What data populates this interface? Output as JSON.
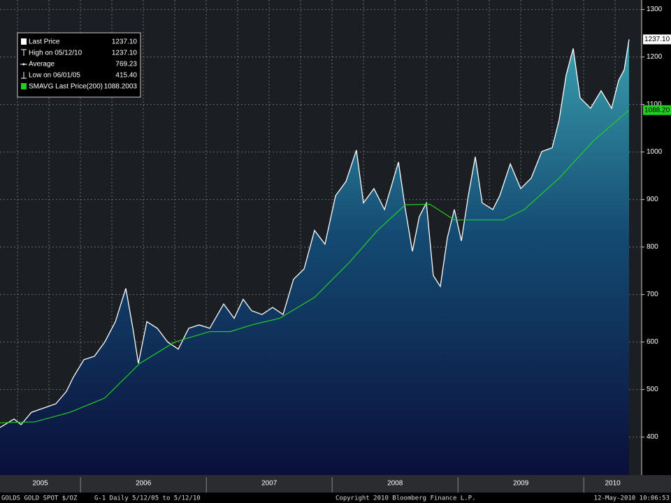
{
  "chart_data": {
    "type": "area-line",
    "xlim": [
      2005.36,
      2010.46
    ],
    "ylim": [
      320,
      1320
    ],
    "yticks": [
      400,
      500,
      600,
      700,
      800,
      900,
      1000,
      1100,
      1200,
      1300
    ],
    "xticks": [
      {
        "value": 2005.36,
        "label": "2005"
      },
      {
        "value": 2006,
        "label": "2006"
      },
      {
        "value": 2007,
        "label": "2007"
      },
      {
        "value": 2008,
        "label": "2008"
      },
      {
        "value": 2009,
        "label": "2009"
      },
      {
        "value": 2010,
        "label": "2010"
      }
    ],
    "grid": true,
    "series": [
      {
        "name": "Last Price",
        "color": "#ffffff",
        "x": [
          2005.36,
          2005.471,
          2005.527,
          2005.61,
          2005.804,
          2005.888,
          2005.943,
          2006.027,
          2006.11,
          2006.193,
          2006.277,
          2006.36,
          2006.416,
          2006.46,
          2006.527,
          2006.61,
          2006.693,
          2006.777,
          2006.86,
          2006.943,
          2007.027,
          2007.138,
          2007.221,
          2007.293,
          2007.36,
          2007.443,
          2007.527,
          2007.61,
          2007.693,
          2007.777,
          2007.86,
          2007.943,
          2008.027,
          2008.11,
          2008.193,
          2008.249,
          2008.332,
          2008.416,
          2008.527,
          2008.582,
          2008.638,
          2008.693,
          2008.749,
          2008.804,
          2008.86,
          2008.916,
          2008.971,
          2009.027,
          2009.082,
          2009.138,
          2009.193,
          2009.277,
          2009.332,
          2009.416,
          2009.499,
          2009.582,
          2009.666,
          2009.749,
          2009.804,
          2009.86,
          2009.916,
          2009.971,
          2010.054,
          2010.138,
          2010.221,
          2010.277,
          2010.321,
          2010.36
        ],
        "values": [
          420,
          438,
          426,
          452,
          470,
          496,
          526,
          563,
          570,
          600,
          643,
          713,
          629,
          555,
          643,
          629,
          600,
          585,
          629,
          636,
          629,
          680,
          650,
          690,
          666,
          658,
          673,
          658,
          732,
          754,
          835,
          806,
          908,
          938,
          1004,
          893,
          923,
          879,
          979,
          879,
          791,
          864,
          893,
          740,
          717,
          820,
          879,
          813,
          908,
          990,
          893,
          879,
          908,
          975,
          923,
          945,
          1001,
          1009,
          1067,
          1162,
          1218,
          1114,
          1092,
          1129,
          1092,
          1151,
          1173,
          1237.1
        ],
        "tag": "1237.10"
      },
      {
        "name": "SMAVG Last Price(200)",
        "color": "#22d022",
        "x": [
          2005.36,
          2005.638,
          2005.916,
          2006.193,
          2006.471,
          2006.749,
          2007.027,
          2007.193,
          2007.36,
          2007.582,
          2007.86,
          2008.138,
          2008.36,
          2008.582,
          2008.777,
          2008.971,
          2009.193,
          2009.36,
          2009.527,
          2009.804,
          2010.082,
          2010.36
        ],
        "values": [
          430,
          432,
          452,
          482,
          555,
          600,
          622,
          622,
          636,
          650,
          694,
          768,
          835,
          889,
          890,
          857,
          857,
          857,
          879,
          945,
          1025,
          1088.2
        ],
        "tag": "1088.20"
      }
    ],
    "legend": [
      {
        "label": "Last Price",
        "value": "1237.10"
      },
      {
        "label": "High on 05/12/10",
        "value": "1237.10"
      },
      {
        "label": "Average",
        "value": "769.23"
      },
      {
        "label": "Low on 06/01/05",
        "value": "415.40"
      },
      {
        "label": "SMAVG Last Price(200)",
        "value": "1088.2003"
      }
    ],
    "footer": {
      "ticker": "GOLDS  GOLD SPOT $/OZ",
      "range": "G-1  Daily  5/12/05 to 5/12/10",
      "copyright": "Copyright 2010 Bloomberg Finance L.P.",
      "timestamp": "12-May-2010 10:06:53"
    }
  }
}
